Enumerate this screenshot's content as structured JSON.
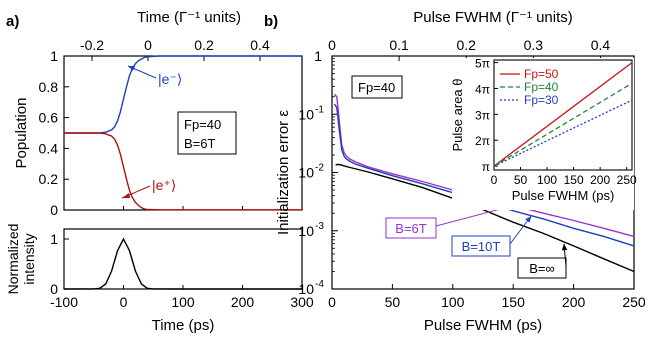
{
  "panel_labels": {
    "a": "a)",
    "b": "b)"
  },
  "chart_data": [
    {
      "id": "a_top",
      "type": "line",
      "top_axis_label": "Time (Γ⁻¹ units)",
      "top_ticks": [
        "-0.2",
        "0",
        "0.2",
        "0.4"
      ],
      "top_tick_values": [
        -0.2,
        0,
        0.2,
        0.4
      ],
      "top_range": [
        -0.3,
        0.55
      ],
      "ylabel": "Population",
      "xlim": [
        -100,
        300
      ],
      "ylim": [
        0,
        1
      ],
      "yticks": [
        "0",
        "0.2",
        "0.4",
        "0.6",
        "0.8",
        "1"
      ],
      "ytick_values": [
        0,
        0.2,
        0.4,
        0.6,
        0.8,
        1.0
      ],
      "textbox": [
        "Fp=40",
        "B=6T"
      ],
      "series": [
        {
          "name": "|e⁻⟩",
          "color": "#1f3fbf",
          "x": [
            -100,
            -40,
            -30,
            -20,
            -15,
            -10,
            -5,
            0,
            5,
            10,
            15,
            20,
            25,
            30,
            35,
            40,
            60,
            100,
            300
          ],
          "y": [
            0.5,
            0.5,
            0.505,
            0.52,
            0.54,
            0.58,
            0.64,
            0.72,
            0.8,
            0.87,
            0.92,
            0.95,
            0.97,
            0.98,
            0.99,
            0.995,
            1.0,
            1.0,
            1.0
          ]
        },
        {
          "name": "|e⁺⟩",
          "color": "#aa1111",
          "x": [
            -100,
            -40,
            -30,
            -20,
            -15,
            -10,
            -5,
            0,
            5,
            10,
            15,
            20,
            25,
            30,
            35,
            40,
            60,
            100,
            300
          ],
          "y": [
            0.5,
            0.5,
            0.495,
            0.48,
            0.46,
            0.42,
            0.36,
            0.28,
            0.2,
            0.13,
            0.08,
            0.05,
            0.03,
            0.015,
            0.007,
            0.003,
            0.001,
            0.001,
            0.001
          ]
        }
      ]
    },
    {
      "id": "a_bottom",
      "type": "line",
      "xlabel": "Time (ps)",
      "ylabel_lines": [
        "Normalized",
        "intensity"
      ],
      "xlim": [
        -100,
        300
      ],
      "ylim": [
        0,
        1.2
      ],
      "xticks": [
        "-100",
        "0",
        "100",
        "200",
        "300"
      ],
      "xtick_values": [
        -100,
        0,
        100,
        200,
        300
      ],
      "yticks": [
        "0",
        "1"
      ],
      "ytick_values": [
        0,
        1
      ],
      "series": [
        {
          "color": "#000000",
          "x": [
            -100,
            -50,
            -40,
            -30,
            -20,
            -10,
            0,
            10,
            20,
            30,
            40,
            50,
            100,
            300
          ],
          "y": [
            0,
            0.001,
            0.015,
            0.1,
            0.36,
            0.77,
            1.0,
            0.77,
            0.36,
            0.1,
            0.015,
            0.001,
            0,
            0
          ]
        }
      ]
    },
    {
      "id": "b_main",
      "type": "line",
      "yscale": "log",
      "top_axis_label": "Pulse FWHM (Γ⁻¹ units)",
      "top_ticks": [
        "0",
        "0.1",
        "0.2",
        "0.3",
        "0.4"
      ],
      "top_tick_values": [
        0,
        0.1,
        0.2,
        0.3,
        0.4
      ],
      "top_range": [
        0,
        0.45
      ],
      "xlabel": "Pulse FWHM (ps)",
      "ylabel": "Initialization error ε",
      "xlim": [
        0,
        250
      ],
      "ylim": [
        0.0001,
        1
      ],
      "xticks": [
        "0",
        "50",
        "100",
        "150",
        "200",
        "250"
      ],
      "xtick_values": [
        0,
        50,
        100,
        150,
        200,
        250
      ],
      "ytick_exponents": [
        "-4",
        "-3",
        "-2",
        "-1"
      ],
      "ytick_values": [
        0.0001,
        0.001,
        0.01,
        0.1,
        1
      ],
      "textbox": "Fp=40",
      "series": [
        {
          "name": "B=6T",
          "color": "#9933cc",
          "x": [
            2,
            4,
            6,
            8,
            10,
            12,
            15,
            20,
            30,
            50,
            75,
            100,
            125,
            150,
            175,
            200,
            225,
            250
          ],
          "y": [
            0.22,
            0.2,
            0.08,
            0.03,
            0.022,
            0.019,
            0.017,
            0.015,
            0.0125,
            0.0095,
            0.007,
            0.005,
            0.0037,
            0.0027,
            0.002,
            0.0015,
            0.0011,
            0.0008
          ]
        },
        {
          "name": "B=10T",
          "color": "#1f3fbf",
          "x": [
            2,
            4,
            6,
            8,
            10,
            12,
            15,
            20,
            30,
            50,
            75,
            100,
            125,
            150,
            175,
            200,
            225,
            250
          ],
          "y": [
            0.15,
            0.13,
            0.055,
            0.025,
            0.019,
            0.017,
            0.0155,
            0.0138,
            0.0118,
            0.0088,
            0.0064,
            0.0045,
            0.0032,
            0.0022,
            0.0016,
            0.0011,
            0.0008,
            0.00055
          ]
        },
        {
          "name": "B=∞",
          "color": "#000000",
          "x": [
            3,
            5,
            8,
            10,
            15,
            20,
            30,
            50,
            75,
            100,
            125,
            150,
            175,
            200,
            225,
            250
          ],
          "y": [
            0.0135,
            0.0138,
            0.0134,
            0.013,
            0.0122,
            0.0115,
            0.0102,
            0.0078,
            0.0055,
            0.0036,
            0.0023,
            0.0014,
            0.0009,
            0.00055,
            0.00033,
            0.0002
          ]
        }
      ],
      "labels": [
        "B=6T",
        "B=10T",
        "B=∞"
      ]
    },
    {
      "id": "b_inset",
      "type": "line",
      "xlabel": "Pulse FWHM (ps)",
      "ylabel": "Pulse area θ",
      "xlim": [
        0,
        260
      ],
      "ylim": [
        0.85,
        5.1
      ],
      "xticks": [
        "0",
        "50",
        "100",
        "150",
        "200",
        "250"
      ],
      "xtick_values": [
        0,
        50,
        100,
        150,
        200,
        250
      ],
      "yticks": [
        "π",
        "2π",
        "3π",
        "4π",
        "5π"
      ],
      "ytick_values": [
        1,
        2,
        3,
        4,
        5
      ],
      "series": [
        {
          "name": "Fp=50",
          "color": "#cc1111",
          "dash": "",
          "x": [
            0,
            260
          ],
          "y": [
            1.0,
            5.0
          ]
        },
        {
          "name": "Fp=40",
          "color": "#22883a",
          "dash": "5,3",
          "x": [
            0,
            260
          ],
          "y": [
            1.0,
            4.2
          ]
        },
        {
          "name": "Fp=30",
          "color": "#1f3fbf",
          "dash": "2,2",
          "x": [
            0,
            260
          ],
          "y": [
            1.0,
            3.55
          ]
        }
      ],
      "legend": [
        "Fp=50",
        "Fp=40",
        "Fp=30"
      ]
    }
  ]
}
